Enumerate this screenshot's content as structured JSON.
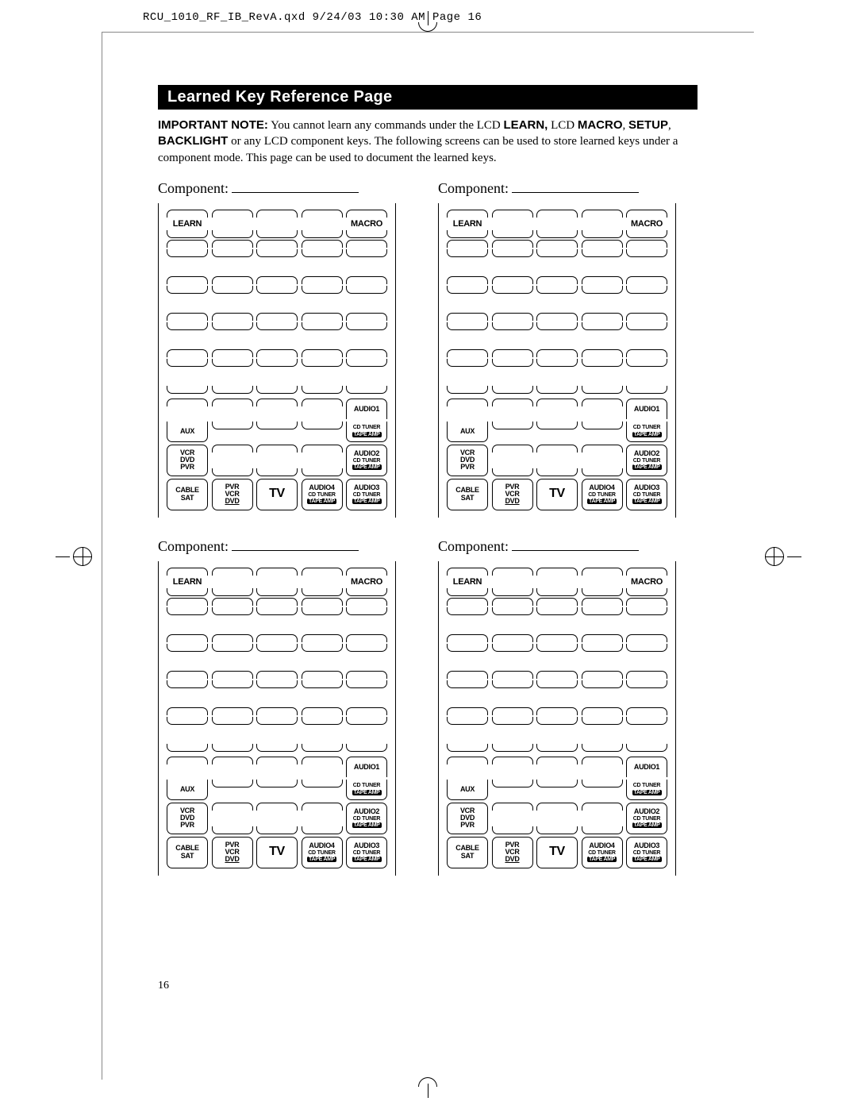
{
  "header": "RCU_1010_RF_IB_RevA.qxd  9/24/03  10:30 AM  Page 16",
  "title": "Learned Key Reference Page",
  "note_prefix": "IMPORTANT NOTE:",
  "note_body_1": " You cannot learn any commands under the LCD ",
  "note_b1": "LEARN,",
  "note_body_2": " LCD ",
  "note_b2": "MACRO",
  "note_body_3": ", ",
  "note_b3": "SETUP",
  "note_body_4": ", ",
  "note_b4": "BACKLIGHT",
  "note_body_5": " or any LCD component keys. The following screens can be used to store learned keys under a component mode. This page can be used to document the learned keys.",
  "component_label": "Component:",
  "btn": {
    "learn": "LEARN",
    "macro": "MACRO",
    "aux": "AUX",
    "audio1": "AUDIO1",
    "audio2": "AUDIO2",
    "audio3": "AUDIO3",
    "audio4": "AUDIO4",
    "cdtuner": "CD TUNER",
    "tapeamp": "TAPE AMP",
    "vcr": "VCR",
    "dvd": "DVD",
    "pvr": "PVR",
    "cable": "CABLE",
    "sat": "SAT",
    "tv": "TV"
  },
  "page_number": "16"
}
